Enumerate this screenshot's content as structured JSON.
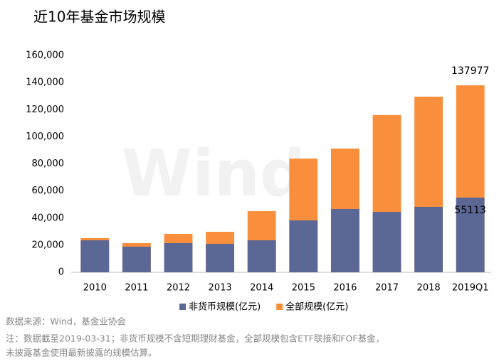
{
  "chart_data": {
    "type": "bar",
    "title": "近10年基金市场规模",
    "categories": [
      "2010",
      "2011",
      "2012",
      "2013",
      "2014",
      "2015",
      "2016",
      "2017",
      "2018",
      "2019Q1"
    ],
    "series": [
      {
        "name": "非货币规模(亿元)",
        "color": "#5b6794",
        "values": [
          23600,
          18900,
          21500,
          21000,
          23600,
          38300,
          46700,
          44600,
          48300,
          55113
        ]
      },
      {
        "name": "全部规模(亿元)",
        "color": "#f98f3c",
        "values": [
          25200,
          21500,
          28300,
          29900,
          45100,
          83900,
          91300,
          116000,
          129600,
          137977
        ]
      }
    ],
    "overlap": true,
    "ylim": [
      0,
      160000
    ],
    "yticks": [
      0,
      {
        "value": 20000,
        "label": "20,000"
      },
      {
        "value": 40000,
        "label": "40,000"
      },
      {
        "value": 60000,
        "label": "60,000"
      },
      {
        "value": 80000,
        "label": "80,000"
      },
      {
        "value": 100000,
        "label": "100,000"
      },
      {
        "value": 120000,
        "label": "120,000"
      },
      {
        "value": 140000,
        "label": "140,000"
      },
      {
        "value": 160000,
        "label": "160,000"
      }
    ],
    "grid": false,
    "watermark": "Wind",
    "source": "数据来源：Wind，基金业协会",
    "notes": [
      "注：数据截至2019-03-31；非货币规模不含短期理财基金，全部规模包含ETF联接和FOF基金，",
      "未披露基金使用最新披露的规模估算。"
    ]
  }
}
